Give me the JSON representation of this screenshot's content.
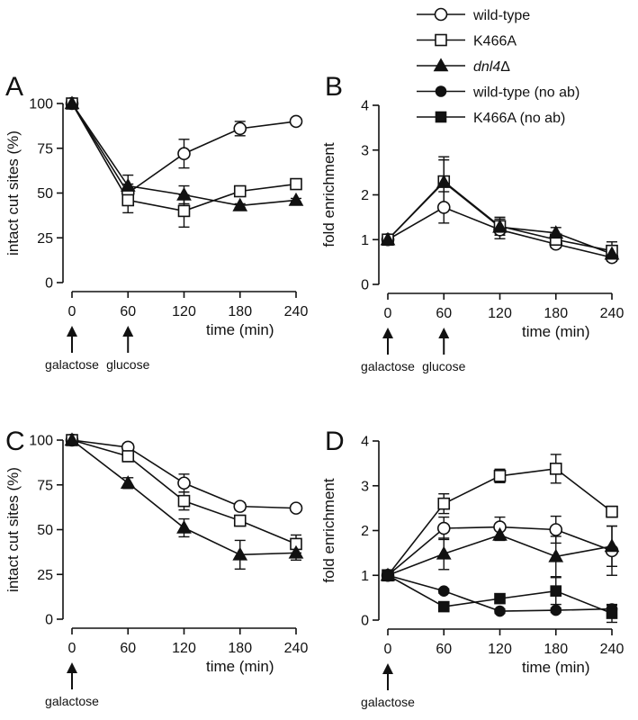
{
  "legend": [
    {
      "name": "wild-type",
      "marker": "circle-open"
    },
    {
      "name": "K466A",
      "marker": "square-open"
    },
    {
      "name": "dnl4Δ",
      "marker": "triangle-filled",
      "italic_part": "dnl4"
    },
    {
      "name": "wild-type (no ab)",
      "marker": "circle-filled"
    },
    {
      "name": "K466A (no ab)",
      "marker": "square-filled"
    }
  ],
  "chart_data": [
    {
      "panel": "A",
      "type": "line",
      "xlabel": "time (min)",
      "ylabel": "intact cut sites (%)",
      "xticks": [
        0,
        60,
        120,
        180,
        240
      ],
      "yticks": [
        0,
        25,
        50,
        75,
        100
      ],
      "xlim": [
        0,
        240
      ],
      "ylim": [
        0,
        100
      ],
      "annotations": [
        {
          "x": 0,
          "label": "galactose"
        },
        {
          "x": 60,
          "label": "glucose"
        }
      ],
      "series": [
        {
          "name": "wild-type",
          "marker": "circle-open",
          "x": [
            0,
            60,
            120,
            180,
            240
          ],
          "values": [
            100,
            50,
            72,
            86,
            90
          ],
          "errors": [
            1,
            5,
            8,
            4,
            1
          ]
        },
        {
          "name": "K466A",
          "marker": "square-open",
          "x": [
            0,
            60,
            120,
            180,
            240
          ],
          "values": [
            100,
            46,
            40,
            51,
            55
          ],
          "errors": [
            1,
            7,
            9,
            2,
            1
          ]
        },
        {
          "name": "dnl4Δ",
          "marker": "triangle-filled",
          "x": [
            0,
            60,
            120,
            180,
            240
          ],
          "values": [
            100,
            54,
            49,
            43,
            46
          ],
          "errors": [
            1,
            6,
            5,
            1,
            1
          ]
        }
      ]
    },
    {
      "panel": "B",
      "type": "line",
      "xlabel": "time (min)",
      "ylabel": "fold enrichment",
      "xticks": [
        0,
        60,
        120,
        180,
        240
      ],
      "yticks": [
        0,
        1,
        2,
        3,
        4
      ],
      "xlim": [
        0,
        240
      ],
      "ylim": [
        0,
        4
      ],
      "annotations": [
        {
          "x": 0,
          "label": "galactose"
        },
        {
          "x": 60,
          "label": "glucose"
        }
      ],
      "series": [
        {
          "name": "wild-type",
          "marker": "circle-open",
          "x": [
            0,
            60,
            120,
            180,
            240
          ],
          "values": [
            1.0,
            1.72,
            1.22,
            0.9,
            0.6
          ],
          "errors": [
            0.05,
            0.35,
            0.2,
            0.08,
            0.08
          ]
        },
        {
          "name": "K466A",
          "marker": "square-open",
          "x": [
            0,
            60,
            120,
            180,
            240
          ],
          "values": [
            1.0,
            2.3,
            1.3,
            1.0,
            0.75
          ],
          "errors": [
            0.05,
            0.55,
            0.2,
            0.12,
            0.2
          ]
        },
        {
          "name": "dnl4Δ",
          "marker": "triangle-filled",
          "x": [
            0,
            60,
            120,
            180,
            240
          ],
          "values": [
            1.0,
            2.28,
            1.28,
            1.15,
            0.68
          ],
          "errors": [
            0.05,
            0.5,
            0.18,
            0.12,
            0.1
          ]
        }
      ]
    },
    {
      "panel": "C",
      "type": "line",
      "xlabel": "time (min)",
      "ylabel": "intact cut sites (%)",
      "xticks": [
        0,
        60,
        120,
        180,
        240
      ],
      "yticks": [
        0,
        25,
        50,
        75,
        100
      ],
      "xlim": [
        0,
        240
      ],
      "ylim": [
        0,
        100
      ],
      "annotations": [
        {
          "x": 0,
          "label": "galactose"
        }
      ],
      "series": [
        {
          "name": "wild-type",
          "marker": "circle-open",
          "x": [
            0,
            60,
            120,
            180,
            240
          ],
          "values": [
            100,
            96,
            76,
            63,
            62
          ],
          "errors": [
            1,
            2,
            5,
            2,
            1
          ]
        },
        {
          "name": "K466A",
          "marker": "square-open",
          "x": [
            0,
            60,
            120,
            180,
            240
          ],
          "values": [
            100,
            91,
            66,
            55,
            42
          ],
          "errors": [
            1,
            3,
            5,
            3,
            5
          ]
        },
        {
          "name": "dnl4Δ",
          "marker": "triangle-filled",
          "x": [
            0,
            60,
            120,
            180,
            240
          ],
          "values": [
            100,
            76,
            51,
            36,
            37
          ],
          "errors": [
            1,
            3,
            5,
            8,
            4
          ]
        }
      ]
    },
    {
      "panel": "D",
      "type": "line",
      "xlabel": "time (min)",
      "ylabel": "fold enrichment",
      "xticks": [
        0,
        60,
        120,
        180,
        240
      ],
      "yticks": [
        0,
        1,
        2,
        3,
        4
      ],
      "xlim": [
        0,
        240
      ],
      "ylim": [
        0,
        4
      ],
      "annotations": [
        {
          "x": 0,
          "label": "galactose"
        }
      ],
      "series": [
        {
          "name": "wild-type",
          "marker": "circle-open",
          "x": [
            0,
            60,
            120,
            180,
            240
          ],
          "values": [
            1.0,
            2.05,
            2.08,
            2.02,
            1.55
          ],
          "errors": [
            0.05,
            0.25,
            0.22,
            0.3,
            0.55
          ]
        },
        {
          "name": "K466A",
          "marker": "square-open",
          "x": [
            0,
            60,
            120,
            180,
            240
          ],
          "values": [
            1.0,
            2.6,
            3.22,
            3.38,
            2.42
          ],
          "errors": [
            0.05,
            0.22,
            0.15,
            0.32,
            0.12
          ]
        },
        {
          "name": "dnl4Δ",
          "marker": "triangle-filled",
          "x": [
            0,
            60,
            120,
            180,
            240
          ],
          "values": [
            1.0,
            1.48,
            1.9,
            1.42,
            1.65
          ],
          "errors": [
            0.05,
            0.35,
            0.12,
            0.45,
            0.45
          ]
        },
        {
          "name": "wild-type (no ab)",
          "marker": "circle-filled",
          "x": [
            0,
            60,
            120,
            180,
            240
          ],
          "values": [
            1.0,
            0.65,
            0.2,
            0.22,
            0.25
          ],
          "errors": [
            0.05,
            0.05,
            0.05,
            0.05,
            0.08
          ]
        },
        {
          "name": "K466A (no ab)",
          "marker": "square-filled",
          "x": [
            0,
            60,
            120,
            180,
            240
          ],
          "values": [
            1.0,
            0.3,
            0.48,
            0.65,
            0.15
          ],
          "errors": [
            0.05,
            0.08,
            0.08,
            0.3,
            0.2
          ]
        }
      ]
    }
  ]
}
